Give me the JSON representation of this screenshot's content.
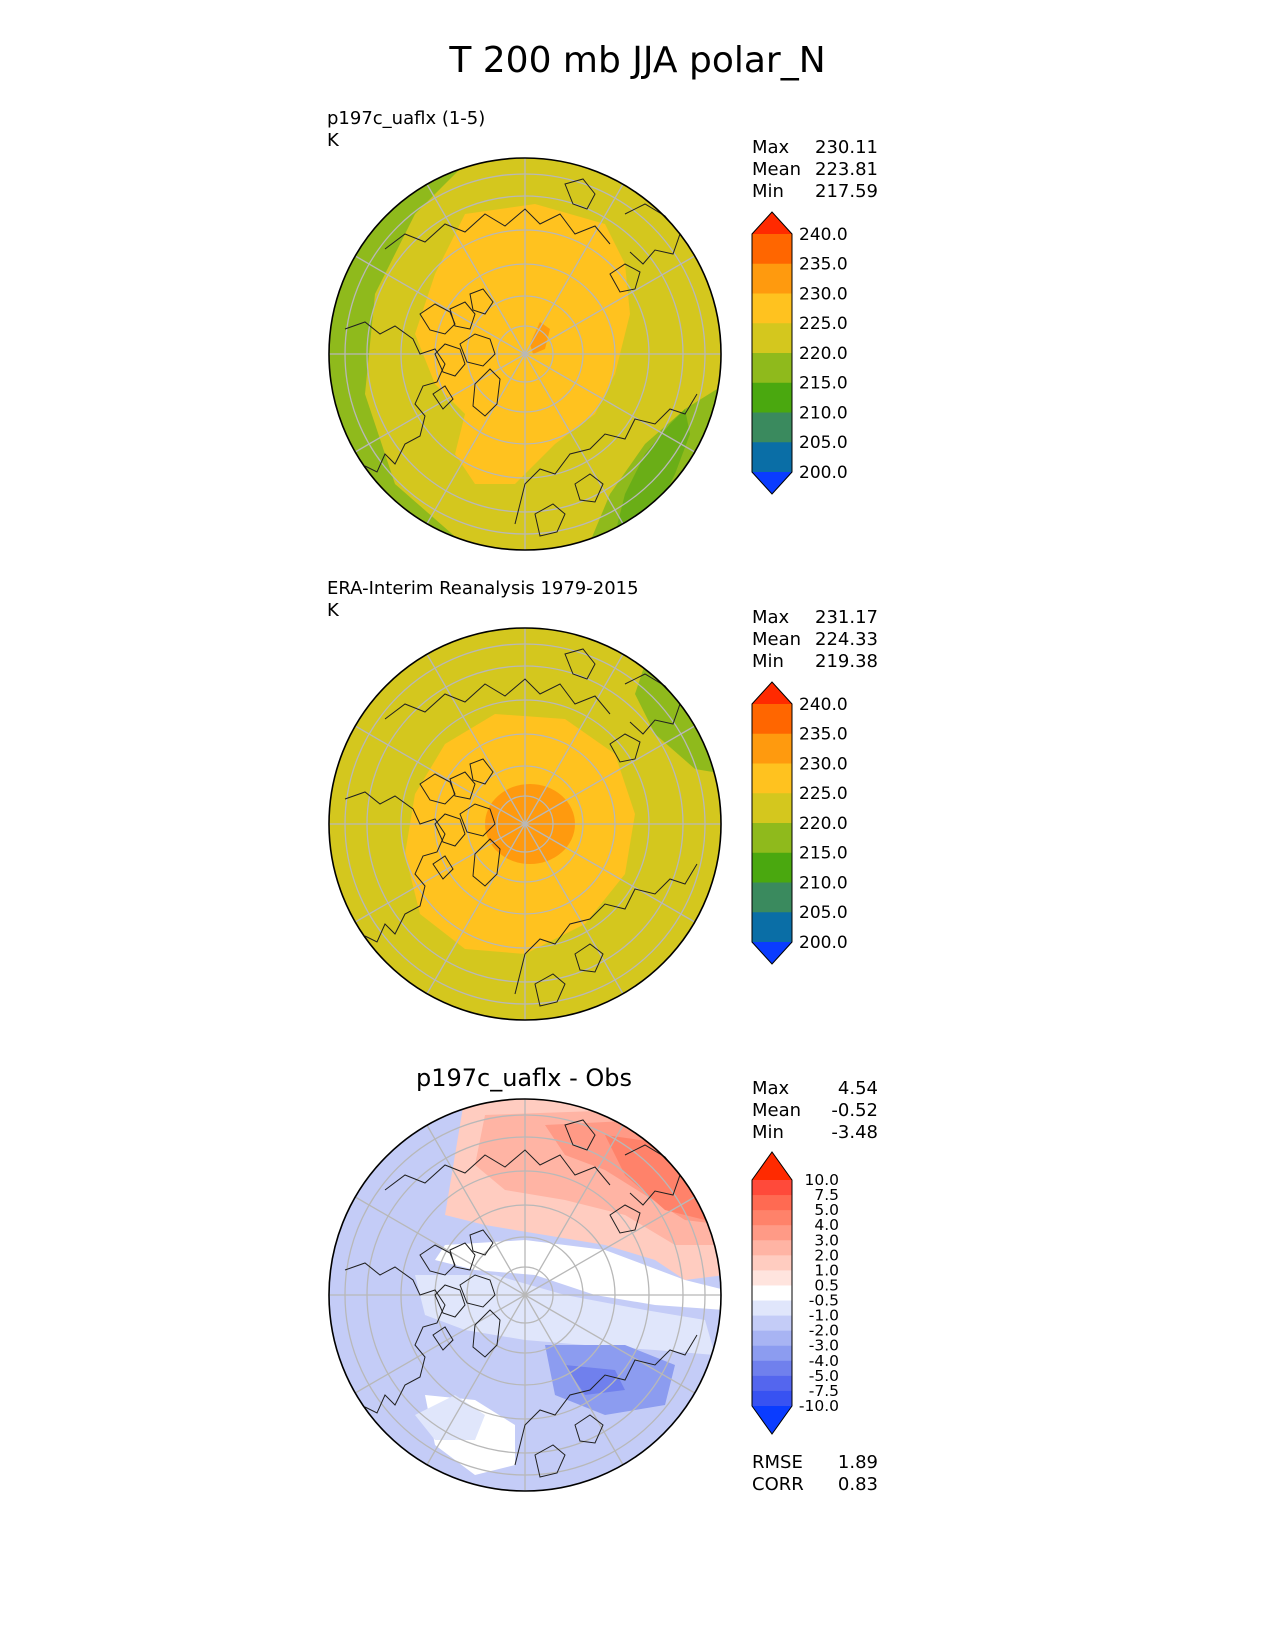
{
  "title": "T 200 mb JJA polar_N",
  "panels": [
    {
      "label_line1": "p197c_uaflx (1-5)",
      "label_line2": "K",
      "stats": [
        {
          "name": "Max",
          "value": "230.11"
        },
        {
          "name": "Mean",
          "value": "223.81"
        },
        {
          "name": "Min",
          "value": "217.59"
        }
      ]
    },
    {
      "label_line1": "ERA-Interim Reanalysis 1979-2015",
      "label_line2": "K",
      "stats": [
        {
          "name": "Max",
          "value": "231.17"
        },
        {
          "name": "Mean",
          "value": "224.33"
        },
        {
          "name": "Min",
          "value": "219.38"
        }
      ]
    },
    {
      "title": "p197c_uaflx - Obs",
      "stats": [
        {
          "name": "Max",
          "value": "4.54"
        },
        {
          "name": "Mean",
          "value": "-0.52"
        },
        {
          "name": "Min",
          "value": "-3.48"
        }
      ],
      "metrics": [
        {
          "name": "RMSE",
          "value": "1.89"
        },
        {
          "name": "CORR",
          "value": "0.83"
        }
      ]
    }
  ],
  "chart_data": [
    {
      "type": "heatmap",
      "projection": "north polar stereographic",
      "title": "p197c_uaflx (1-5)",
      "units": "K",
      "colorbar_ticks": [
        "240.0",
        "235.0",
        "230.0",
        "225.0",
        "220.0",
        "215.0",
        "210.0",
        "205.0",
        "200.0"
      ],
      "colorbar_colors": [
        "#ff2a00",
        "#ff6600",
        "#ff9a0e",
        "#ffc21f",
        "#d4c71e",
        "#8fba1c",
        "#4aa80f",
        "#3a8a5e",
        "#0a6ea6",
        "#0a3cff"
      ],
      "extend": "both",
      "max": 230.11,
      "mean": 223.81,
      "min": 217.59
    },
    {
      "type": "heatmap",
      "projection": "north polar stereographic",
      "title": "ERA-Interim Reanalysis 1979-2015",
      "units": "K",
      "colorbar_ticks": [
        "240.0",
        "235.0",
        "230.0",
        "225.0",
        "220.0",
        "215.0",
        "210.0",
        "205.0",
        "200.0"
      ],
      "colorbar_colors": [
        "#ff2a00",
        "#ff6600",
        "#ff9a0e",
        "#ffc21f",
        "#d4c71e",
        "#8fba1c",
        "#4aa80f",
        "#3a8a5e",
        "#0a6ea6",
        "#0a3cff"
      ],
      "extend": "both",
      "max": 231.17,
      "mean": 224.33,
      "min": 219.38
    },
    {
      "type": "heatmap",
      "projection": "north polar stereographic",
      "title": "p197c_uaflx - Obs",
      "colorbar_ticks": [
        "10.0",
        "7.5",
        "5.0",
        "4.0",
        "3.0",
        "2.0",
        "1.0",
        "0.5",
        "-0.5",
        "-1.0",
        "-2.0",
        "-3.0",
        "-4.0",
        "-5.0",
        "-7.5",
        "-10.0"
      ],
      "colorbar_colors": [
        "#ff2a00",
        "#ff4a3a",
        "#ff6a52",
        "#ff826a",
        "#ff9a86",
        "#ffb4a4",
        "#ffccc0",
        "#ffe4de",
        "#ffffff",
        "#e0e6fb",
        "#c4ccf7",
        "#a8b4f3",
        "#8c9cf0",
        "#7080ed",
        "#5466ee",
        "#3852f2",
        "#0a3cff"
      ],
      "extend": "both",
      "max": 4.54,
      "mean": -0.52,
      "min": -3.48,
      "rmse": 1.89,
      "corr": 0.83
    }
  ]
}
